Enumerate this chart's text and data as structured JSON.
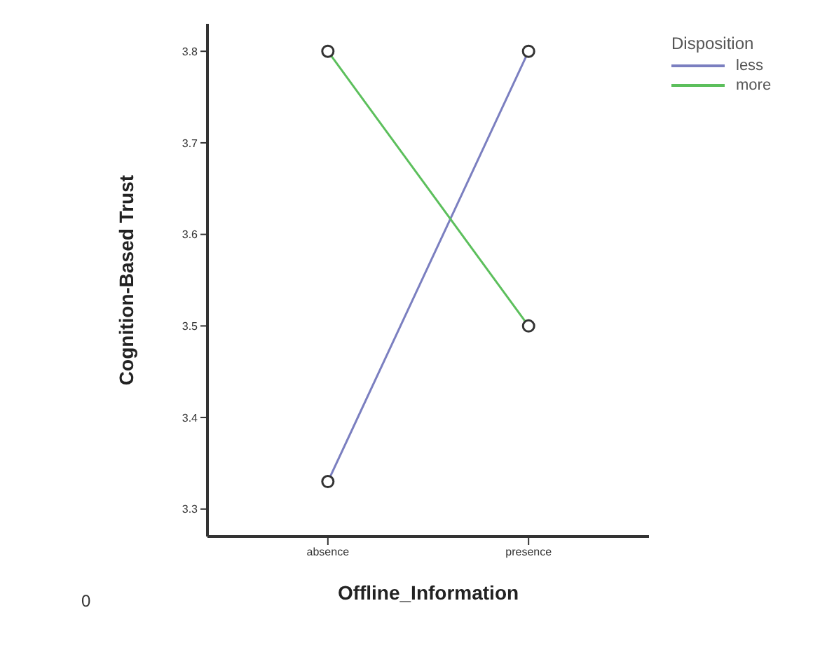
{
  "chart_data": {
    "type": "line",
    "xlabel": "Offline_Information",
    "ylabel": "Cognition-Based Trust",
    "legend_title": "Disposition",
    "categories": [
      "absence",
      "presence"
    ],
    "series": [
      {
        "name": "less",
        "color": "#7b7fc0",
        "values": [
          3.33,
          3.8
        ]
      },
      {
        "name": "more",
        "color": "#5cbf5c",
        "values": [
          3.8,
          3.5
        ]
      }
    ],
    "ylim": [
      3.27,
      3.83
    ],
    "yticks": [
      3.3,
      3.4,
      3.5,
      3.6,
      3.7,
      3.8
    ],
    "annotations": [
      "0"
    ],
    "legend": "top right",
    "marker": "circle",
    "line_style": "solid",
    "grid": false
  }
}
